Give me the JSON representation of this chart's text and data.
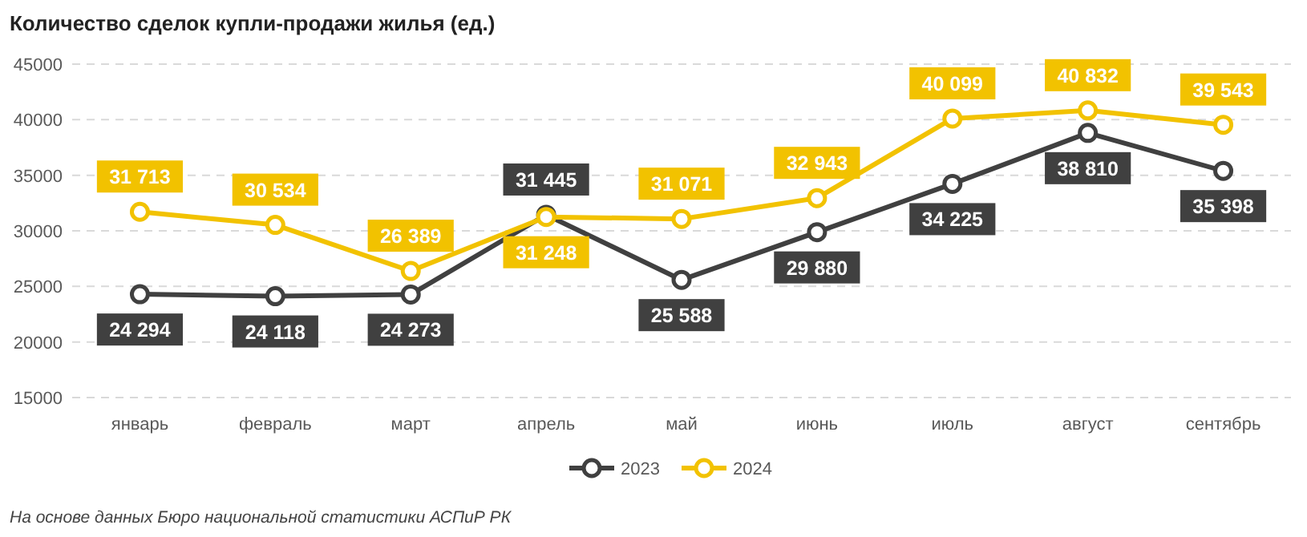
{
  "chart_data": {
    "type": "line",
    "title": "Количество сделок купли-продажи жилья (ед.)",
    "categories": [
      "январь",
      "февраль",
      "март",
      "апрель",
      "май",
      "июнь",
      "июль",
      "август",
      "сентябрь"
    ],
    "series": [
      {
        "name": "2023",
        "color": "#404040",
        "values": [
          24294,
          24118,
          24273,
          31445,
          25588,
          29880,
          34225,
          38810,
          35398
        ],
        "value_labels": [
          "24 294",
          "24 118",
          "24 273",
          "31 445",
          "25 588",
          "29 880",
          "34 225",
          "38 810",
          "35 398"
        ]
      },
      {
        "name": "2024",
        "color": "#f2c200",
        "values": [
          31713,
          30534,
          26389,
          31248,
          31071,
          32943,
          40099,
          40832,
          39543
        ],
        "value_labels": [
          "31 713",
          "30 534",
          "26 389",
          "31 248",
          "31 071",
          "32 943",
          "40 099",
          "40 832",
          "39 543"
        ]
      }
    ],
    "ylim": [
      15000,
      45000
    ],
    "yticks": [
      15000,
      20000,
      25000,
      30000,
      35000,
      40000,
      45000
    ],
    "grid": "y",
    "legend": "bottom",
    "marker": "circle",
    "line_style": "solid",
    "annotations": [
      "На основе данных Бюро национальной статистики АСПиР РК"
    ]
  }
}
